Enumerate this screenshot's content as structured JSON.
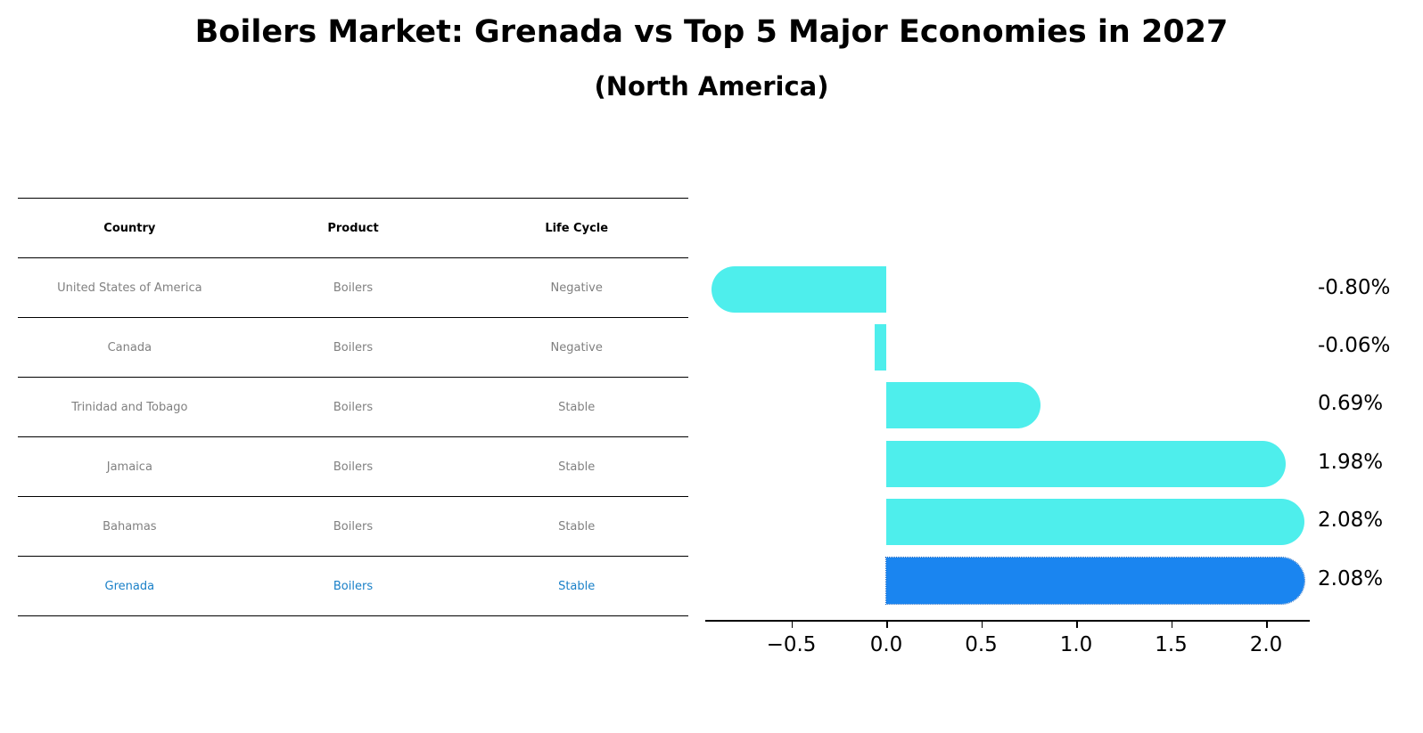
{
  "title": "Boilers Market: Grenada vs Top 5 Major Economies in 2027",
  "subtitle": "(North America)",
  "table": {
    "headers": [
      "Country",
      "Product",
      "Life Cycle"
    ],
    "rows": [
      [
        "United States of America",
        "Boilers",
        "Negative"
      ],
      [
        "Canada",
        "Boilers",
        "Negative"
      ],
      [
        "Trinidad and Tobago",
        "Boilers",
        "Stable"
      ],
      [
        "Jamaica",
        "Boilers",
        "Stable"
      ],
      [
        "Bahamas",
        "Boilers",
        "Stable"
      ],
      [
        "Grenada",
        "Boilers",
        "Stable"
      ]
    ],
    "highlight_row": 5
  },
  "colors": {
    "bar": "#4eeeec",
    "highlight_bar": "#1a85f0",
    "highlight_text": "#1a80c8",
    "row_text": "#808080"
  },
  "chart_data": {
    "type": "bar",
    "orientation": "horizontal",
    "title": "Boilers Market: Grenada vs Top 5 Major Economies in 2027",
    "subtitle": "(North America)",
    "categories": [
      "United States of America",
      "Canada",
      "Trinidad and Tobago",
      "Jamaica",
      "Bahamas",
      "Grenada"
    ],
    "values": [
      -0.8,
      -0.06,
      0.69,
      1.98,
      2.08,
      2.08
    ],
    "value_labels": [
      "-0.80%",
      "-0.06%",
      "0.69%",
      "1.98%",
      "2.08%",
      "2.08%"
    ],
    "highlight": "Grenada",
    "xlabel": "",
    "ylabel": "",
    "xlim": [
      -0.92,
      2.2
    ],
    "xticks": [
      -0.5,
      0.0,
      0.5,
      1.0,
      1.5,
      2.0
    ],
    "xtick_labels": [
      "−0.5",
      "0.0",
      "0.5",
      "1.0",
      "1.5",
      "2.0"
    ],
    "grid": false,
    "legend": null
  }
}
